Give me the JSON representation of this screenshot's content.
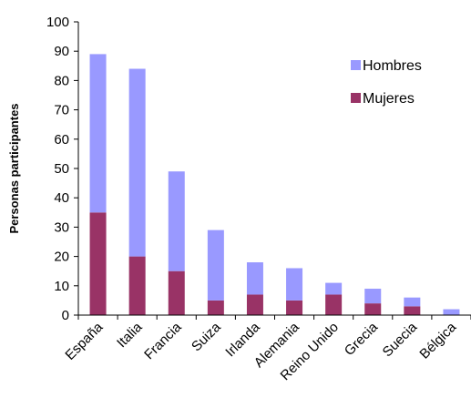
{
  "chart_data": {
    "type": "bar",
    "stacked": true,
    "categories": [
      "España",
      "Italia",
      "Francia",
      "Suiza",
      "Irlanda",
      "Alemania",
      "Reino Unido",
      "Grecia",
      "Suecia",
      "Bélgica"
    ],
    "series": [
      {
        "name": "Mujeres",
        "color": "#993366",
        "values": [
          35,
          20,
          15,
          5,
          7,
          5,
          7,
          4,
          3,
          0
        ]
      },
      {
        "name": "Hombres",
        "color": "#9999ff",
        "values": [
          54,
          64,
          34,
          24,
          11,
          11,
          4,
          5,
          3,
          2
        ]
      }
    ],
    "ylabel": "Personas participantes",
    "xlabel": "",
    "title": "",
    "ylim": [
      0,
      100
    ],
    "yticks": [
      "0",
      "10",
      "20",
      "30",
      "40",
      "50",
      "60",
      "70",
      "80",
      "90",
      "100"
    ],
    "grid": false,
    "legend": {
      "position": "top-right",
      "order": [
        "Hombres",
        "Mujeres"
      ]
    }
  }
}
